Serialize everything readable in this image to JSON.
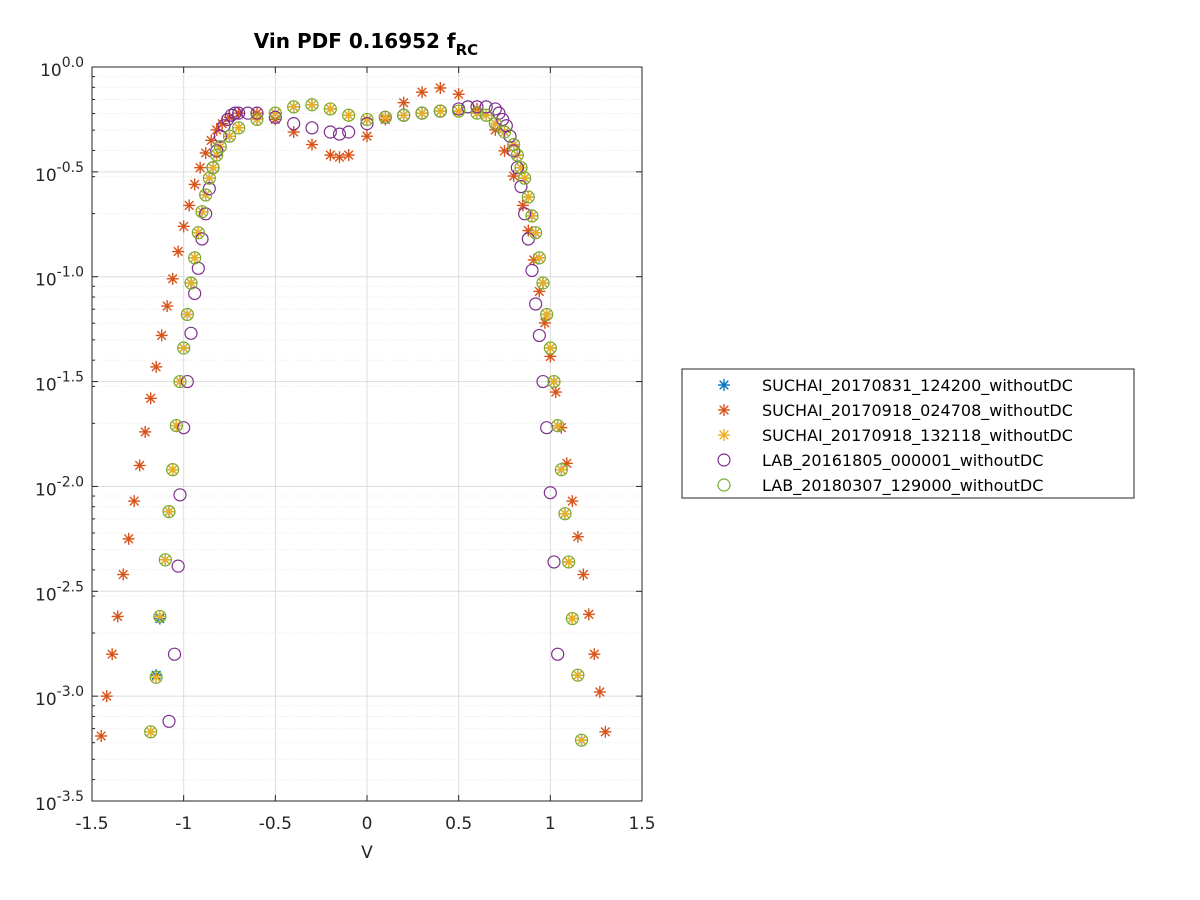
{
  "chart_data": {
    "type": "scatter",
    "title": "Vin PDF 0.16952 f",
    "title_subscript": "RC",
    "xlabel": "V",
    "ylabel": "",
    "xlim": [
      -1.5,
      1.5
    ],
    "xticks": [
      -1.5,
      -1,
      -0.5,
      0,
      0.5,
      1,
      1.5
    ],
    "xtick_labels": [
      "-1.5",
      "-1",
      "-0.5",
      "0",
      "0.5",
      "1",
      "1.5"
    ],
    "yscale": "log",
    "ylim_log10": [
      -3.5,
      0.0
    ],
    "yticks_log10": [
      0,
      -0.5,
      -1,
      -1.5,
      -2,
      -2.5,
      -3,
      -3.5
    ],
    "ytick_labels": [
      {
        "base": "10",
        "exp": "0.0"
      },
      {
        "base": "10",
        "exp": "-0.5"
      },
      {
        "base": "10",
        "exp": "-1.0"
      },
      {
        "base": "10",
        "exp": "-1.5"
      },
      {
        "base": "10",
        "exp": "-2.0"
      },
      {
        "base": "10",
        "exp": "-2.5"
      },
      {
        "base": "10",
        "exp": "-3.0"
      },
      {
        "base": "10",
        "exp": "-3.5"
      }
    ],
    "grid": true,
    "minor_grid": true,
    "legend_position": "outside-right",
    "series": [
      {
        "name": "SUCHAI_20170831_124200_withoutDC",
        "marker": "asterisk",
        "color": "#0072BD",
        "x": [
          -1.18,
          -1.15,
          -1.13,
          -1.1,
          -1.08,
          -1.06,
          -1.04,
          -1.02,
          -1.0,
          -0.98,
          -0.96,
          -0.94,
          -0.92,
          -0.9,
          -0.88,
          -0.86,
          -0.84,
          -0.82,
          -0.8,
          -0.75,
          -0.7,
          -0.6,
          -0.5,
          -0.4,
          -0.3,
          -0.2,
          -0.1,
          0.0,
          0.1,
          0.2,
          0.3,
          0.4,
          0.5,
          0.6,
          0.65,
          0.7,
          0.75,
          0.8,
          0.82,
          0.84,
          0.86,
          0.88,
          0.9,
          0.92,
          0.94,
          0.96,
          0.98,
          1.0,
          1.02,
          1.04,
          1.06,
          1.08,
          1.1,
          1.12,
          1.15,
          1.17
        ],
        "y_log10": [
          -3.17,
          -2.9,
          -2.63,
          -2.35,
          -2.12,
          -1.92,
          -1.71,
          -1.5,
          -1.34,
          -1.18,
          -1.03,
          -0.91,
          -0.79,
          -0.69,
          -0.61,
          -0.53,
          -0.48,
          -0.42,
          -0.38,
          -0.33,
          -0.29,
          -0.25,
          -0.22,
          -0.19,
          -0.18,
          -0.2,
          -0.23,
          -0.25,
          -0.24,
          -0.23,
          -0.22,
          -0.21,
          -0.21,
          -0.22,
          -0.23,
          -0.27,
          -0.31,
          -0.37,
          -0.42,
          -0.48,
          -0.53,
          -0.62,
          -0.71,
          -0.79,
          -0.91,
          -1.03,
          -1.18,
          -1.34,
          -1.5,
          -1.71,
          -1.92,
          -2.13,
          -2.36,
          -2.63,
          -2.9,
          -3.21
        ]
      },
      {
        "name": "SUCHAI_20170918_024708_withoutDC",
        "marker": "asterisk",
        "color": "#D95319",
        "x": [
          -1.45,
          -1.42,
          -1.39,
          -1.36,
          -1.33,
          -1.3,
          -1.27,
          -1.24,
          -1.21,
          -1.18,
          -1.15,
          -1.12,
          -1.09,
          -1.06,
          -1.03,
          -1.0,
          -0.97,
          -0.94,
          -0.91,
          -0.88,
          -0.85,
          -0.82,
          -0.79,
          -0.75,
          -0.7,
          -0.6,
          -0.5,
          -0.4,
          -0.3,
          -0.2,
          -0.15,
          -0.1,
          0.0,
          0.1,
          0.2,
          0.3,
          0.4,
          0.5,
          0.6,
          0.7,
          0.75,
          0.8,
          0.85,
          0.88,
          0.91,
          0.94,
          0.97,
          1.0,
          1.03,
          1.06,
          1.09,
          1.12,
          1.15,
          1.18,
          1.21,
          1.24,
          1.27,
          1.3
        ],
        "y_log10": [
          -3.19,
          -3.0,
          -2.8,
          -2.62,
          -2.42,
          -2.25,
          -2.07,
          -1.9,
          -1.74,
          -1.58,
          -1.43,
          -1.28,
          -1.14,
          -1.01,
          -0.88,
          -0.76,
          -0.66,
          -0.56,
          -0.48,
          -0.41,
          -0.35,
          -0.3,
          -0.27,
          -0.24,
          -0.22,
          -0.22,
          -0.25,
          -0.31,
          -0.37,
          -0.42,
          -0.43,
          -0.42,
          -0.33,
          -0.25,
          -0.17,
          -0.12,
          -0.1,
          -0.13,
          -0.2,
          -0.3,
          -0.4,
          -0.52,
          -0.66,
          -0.78,
          -0.92,
          -1.07,
          -1.22,
          -1.38,
          -1.55,
          -1.72,
          -1.89,
          -2.07,
          -2.24,
          -2.42,
          -2.61,
          -2.8,
          -2.98,
          -3.17
        ]
      },
      {
        "name": "SUCHAI_20170918_132118_withoutDC",
        "marker": "asterisk",
        "color": "#EDB120",
        "x": [
          -1.18,
          -1.15,
          -1.13,
          -1.1,
          -1.08,
          -1.06,
          -1.04,
          -1.02,
          -1.0,
          -0.98,
          -0.96,
          -0.94,
          -0.92,
          -0.9,
          -0.88,
          -0.86,
          -0.84,
          -0.82,
          -0.8,
          -0.75,
          -0.7,
          -0.6,
          -0.5,
          -0.4,
          -0.3,
          -0.2,
          -0.1,
          0.0,
          0.1,
          0.2,
          0.3,
          0.4,
          0.5,
          0.6,
          0.65,
          0.7,
          0.75,
          0.8,
          0.82,
          0.84,
          0.86,
          0.88,
          0.9,
          0.92,
          0.94,
          0.96,
          0.98,
          1.0,
          1.02,
          1.04,
          1.06,
          1.08,
          1.1,
          1.12,
          1.15,
          1.17
        ],
        "y_log10": [
          -3.17,
          -2.91,
          -2.62,
          -2.35,
          -2.12,
          -1.92,
          -1.71,
          -1.5,
          -1.34,
          -1.18,
          -1.03,
          -0.91,
          -0.79,
          -0.69,
          -0.61,
          -0.53,
          -0.48,
          -0.42,
          -0.38,
          -0.33,
          -0.29,
          -0.25,
          -0.22,
          -0.19,
          -0.18,
          -0.2,
          -0.23,
          -0.25,
          -0.24,
          -0.23,
          -0.22,
          -0.21,
          -0.21,
          -0.22,
          -0.23,
          -0.27,
          -0.31,
          -0.37,
          -0.42,
          -0.48,
          -0.53,
          -0.62,
          -0.71,
          -0.79,
          -0.91,
          -1.03,
          -1.18,
          -1.34,
          -1.5,
          -1.71,
          -1.92,
          -2.13,
          -2.36,
          -2.63,
          -2.9,
          -3.21
        ]
      },
      {
        "name": "LAB_20161805_000001_withoutDC",
        "marker": "circle",
        "color": "#7E2F8E",
        "x": [
          -1.08,
          -1.05,
          -1.03,
          -1.02,
          -1.0,
          -0.98,
          -0.96,
          -0.94,
          -0.92,
          -0.9,
          -0.88,
          -0.86,
          -0.84,
          -0.82,
          -0.8,
          -0.78,
          -0.76,
          -0.74,
          -0.72,
          -0.7,
          -0.65,
          -0.6,
          -0.5,
          -0.4,
          -0.3,
          -0.2,
          -0.15,
          -0.1,
          0.0,
          0.1,
          0.2,
          0.3,
          0.4,
          0.5,
          0.55,
          0.6,
          0.65,
          0.7,
          0.72,
          0.74,
          0.76,
          0.78,
          0.8,
          0.82,
          0.84,
          0.86,
          0.88,
          0.9,
          0.92,
          0.94,
          0.96,
          0.98,
          1.0,
          1.02,
          1.04
        ],
        "y_log10": [
          -3.12,
          -2.8,
          -2.38,
          -2.04,
          -1.72,
          -1.5,
          -1.27,
          -1.08,
          -0.96,
          -0.82,
          -0.7,
          -0.58,
          -0.48,
          -0.4,
          -0.33,
          -0.28,
          -0.25,
          -0.23,
          -0.22,
          -0.22,
          -0.22,
          -0.22,
          -0.24,
          -0.27,
          -0.29,
          -0.31,
          -0.32,
          -0.31,
          -0.27,
          -0.24,
          -0.23,
          -0.22,
          -0.21,
          -0.2,
          -0.19,
          -0.19,
          -0.19,
          -0.2,
          -0.22,
          -0.25,
          -0.28,
          -0.33,
          -0.4,
          -0.48,
          -0.57,
          -0.7,
          -0.82,
          -0.97,
          -1.13,
          -1.28,
          -1.5,
          -1.72,
          -2.03,
          -2.36,
          -2.8
        ]
      },
      {
        "name": "LAB_20180307_129000_withoutDC",
        "marker": "circle",
        "color": "#77AC30",
        "x": [
          -1.18,
          -1.15,
          -1.13,
          -1.1,
          -1.08,
          -1.06,
          -1.04,
          -1.02,
          -1.0,
          -0.98,
          -0.96,
          -0.94,
          -0.92,
          -0.9,
          -0.88,
          -0.86,
          -0.84,
          -0.82,
          -0.8,
          -0.75,
          -0.7,
          -0.6,
          -0.5,
          -0.4,
          -0.3,
          -0.2,
          -0.1,
          0.0,
          0.1,
          0.2,
          0.3,
          0.4,
          0.5,
          0.6,
          0.65,
          0.7,
          0.75,
          0.8,
          0.82,
          0.84,
          0.86,
          0.88,
          0.9,
          0.92,
          0.94,
          0.96,
          0.98,
          1.0,
          1.02,
          1.04,
          1.06,
          1.08,
          1.1,
          1.12,
          1.15,
          1.17
        ],
        "y_log10": [
          -3.17,
          -2.91,
          -2.62,
          -2.35,
          -2.12,
          -1.92,
          -1.71,
          -1.5,
          -1.34,
          -1.18,
          -1.03,
          -0.91,
          -0.79,
          -0.69,
          -0.61,
          -0.53,
          -0.48,
          -0.42,
          -0.38,
          -0.33,
          -0.29,
          -0.25,
          -0.22,
          -0.19,
          -0.18,
          -0.2,
          -0.23,
          -0.25,
          -0.24,
          -0.23,
          -0.22,
          -0.21,
          -0.21,
          -0.22,
          -0.23,
          -0.27,
          -0.31,
          -0.37,
          -0.42,
          -0.48,
          -0.53,
          -0.62,
          -0.71,
          -0.79,
          -0.91,
          -1.03,
          -1.18,
          -1.34,
          -1.5,
          -1.71,
          -1.92,
          -2.13,
          -2.36,
          -2.63,
          -2.9,
          -3.21
        ]
      }
    ]
  }
}
